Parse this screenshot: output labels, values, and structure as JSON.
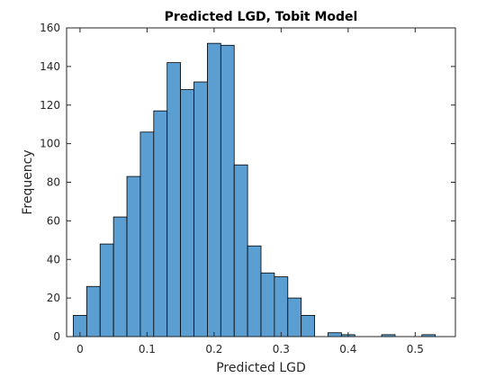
{
  "chart_data": {
    "type": "bar",
    "title": "Predicted LGD, Tobit Model",
    "xlabel": "Predicted LGD",
    "ylabel": "Frequency",
    "xlim": [
      -0.02,
      0.56
    ],
    "ylim": [
      0,
      160
    ],
    "x_ticks": [
      "0",
      "0.1",
      "0.2",
      "0.3",
      "0.4",
      "0.5"
    ],
    "x_tick_values": [
      0,
      0.1,
      0.2,
      0.3,
      0.4,
      0.5
    ],
    "y_ticks": [
      "0",
      "20",
      "40",
      "60",
      "80",
      "100",
      "120",
      "140",
      "160"
    ],
    "y_tick_values": [
      0,
      20,
      40,
      60,
      80,
      100,
      120,
      140,
      160
    ],
    "bin_width": 0.02,
    "bin_start": -0.01,
    "bins": [
      {
        "x": 0.0,
        "count": 11
      },
      {
        "x": 0.02,
        "count": 26
      },
      {
        "x": 0.04,
        "count": 48
      },
      {
        "x": 0.06,
        "count": 62
      },
      {
        "x": 0.08,
        "count": 83
      },
      {
        "x": 0.1,
        "count": 106
      },
      {
        "x": 0.12,
        "count": 117
      },
      {
        "x": 0.14,
        "count": 142
      },
      {
        "x": 0.16,
        "count": 128
      },
      {
        "x": 0.18,
        "count": 132
      },
      {
        "x": 0.2,
        "count": 152
      },
      {
        "x": 0.22,
        "count": 151
      },
      {
        "x": 0.24,
        "count": 89
      },
      {
        "x": 0.26,
        "count": 47
      },
      {
        "x": 0.28,
        "count": 33
      },
      {
        "x": 0.3,
        "count": 31
      },
      {
        "x": 0.32,
        "count": 20
      },
      {
        "x": 0.34,
        "count": 11
      },
      {
        "x": 0.36,
        "count": 0
      },
      {
        "x": 0.38,
        "count": 2
      },
      {
        "x": 0.4,
        "count": 1
      },
      {
        "x": 0.42,
        "count": 0
      },
      {
        "x": 0.44,
        "count": 0
      },
      {
        "x": 0.46,
        "count": 1
      },
      {
        "x": 0.48,
        "count": 0
      },
      {
        "x": 0.5,
        "count": 0
      },
      {
        "x": 0.52,
        "count": 1
      }
    ],
    "bar_color": "#5b9fd2",
    "bar_edge_color": "#000000",
    "grid": false,
    "legend": "none"
  }
}
